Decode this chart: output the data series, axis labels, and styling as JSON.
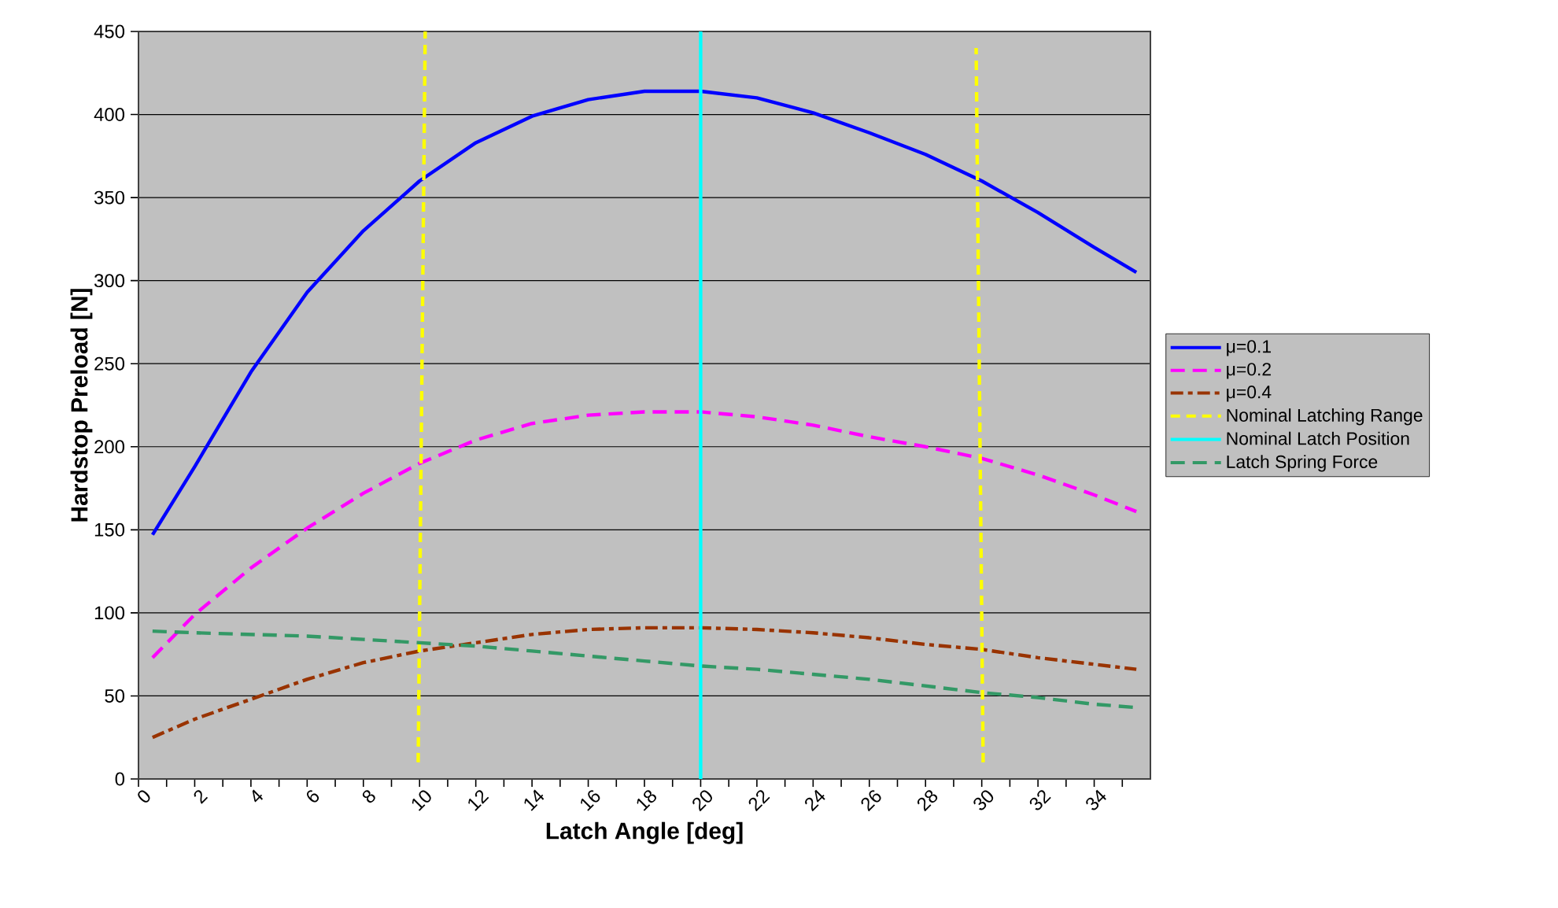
{
  "chart_data": {
    "type": "line",
    "xlabel": "Latch Angle [deg]",
    "ylabel": "Hardstop Preload [N]",
    "xlim": [
      0,
      36
    ],
    "ylim": [
      0,
      450
    ],
    "xticks": [
      0,
      {
        "value": 1,
        "label": null
      },
      2,
      {
        "value": 3,
        "label": null
      },
      4,
      {
        "value": 5,
        "label": null
      },
      6,
      {
        "value": 7,
        "label": null
      },
      8,
      {
        "value": 9,
        "label": null
      },
      10,
      {
        "value": 11,
        "label": null
      },
      12,
      {
        "value": 13,
        "label": null
      },
      14,
      {
        "value": 15,
        "label": null
      },
      16,
      {
        "value": 17,
        "label": null
      },
      18,
      {
        "value": 19,
        "label": null
      },
      20,
      {
        "value": 21,
        "label": null
      },
      22,
      {
        "value": 23,
        "label": null
      },
      24,
      {
        "value": 25,
        "label": null
      },
      26,
      {
        "value": 27,
        "label": null
      },
      28,
      {
        "value": 29,
        "label": null
      },
      30,
      {
        "value": 31,
        "label": null
      },
      32,
      {
        "value": 33,
        "label": null
      },
      34,
      {
        "value": 35,
        "label": null
      }
    ],
    "yticks": [
      0,
      50,
      100,
      150,
      200,
      250,
      300,
      350,
      400,
      450
    ],
    "grid": "y",
    "legend": "right",
    "x": [
      0.5,
      2,
      4,
      6,
      8,
      10,
      12,
      14,
      16,
      18,
      20,
      22,
      24,
      26,
      28,
      30,
      32,
      34,
      35.5
    ],
    "series": [
      {
        "name": "μ=0.1",
        "color": "#0000ff",
        "line_style": "solid",
        "values": [
          147,
          188,
          245,
          293,
          330,
          360,
          383,
          399,
          409,
          414,
          414,
          410,
          401,
          389,
          376,
          360,
          341,
          320,
          305
        ]
      },
      {
        "name": "μ=0.2",
        "color": "#ff00ff",
        "line_style": "dashed",
        "values": [
          73,
          99,
          127,
          151,
          172,
          190,
          204,
          214,
          219,
          221,
          221,
          218,
          213,
          206,
          200,
          193,
          183,
          171,
          161
        ]
      },
      {
        "name": "μ=0.4",
        "color": "#993300",
        "line_style": "dashdot",
        "values": [
          25,
          36,
          48,
          60,
          70,
          77,
          82,
          87,
          90,
          91,
          91,
          90,
          88,
          85,
          81,
          78,
          73,
          69,
          66
        ]
      },
      {
        "name": "Nominal Latching Range",
        "color": "#ffff00",
        "line_style": "dotted",
        "x": [
          9.95,
          10.2
        ],
        "values": [
          10,
          450
        ]
      },
      {
        "color": "#ffff00",
        "line_style": "dotted",
        "x": [
          30.05,
          29.8
        ],
        "values": [
          10,
          440
        ]
      },
      {
        "name": "Nominal Latch Position",
        "color": "#00ffff",
        "line_style": "solid",
        "x": [
          20,
          20
        ],
        "values": [
          0,
          450
        ]
      },
      {
        "name": "Latch Spring Force",
        "color": "#339966",
        "line_style": "dashed",
        "values": [
          89,
          88,
          87,
          86,
          84,
          82,
          80,
          77,
          74,
          71,
          68,
          66,
          63,
          60,
          56,
          52,
          49,
          45,
          43
        ]
      }
    ]
  }
}
